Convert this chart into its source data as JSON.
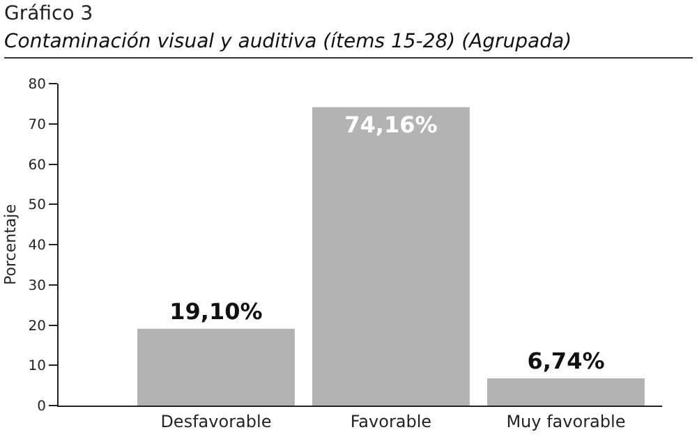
{
  "chart_data": {
    "type": "bar",
    "title": "Gráfico 3",
    "subtitle": "Contaminación visual y auditiva (ítems 15-28) (Agrupada)",
    "ylabel": "Porcentaje",
    "categories": [
      "Desfavorable",
      "Favorable",
      "Muy favorable"
    ],
    "values": [
      19.1,
      74.16,
      6.74
    ],
    "value_labels": [
      "19,10%",
      "74,16%",
      "6,74%"
    ],
    "color": "#b3b3b3",
    "ylim": [
      0,
      80
    ],
    "yticks": [
      0,
      10,
      20,
      30,
      40,
      50,
      60,
      70,
      80
    ],
    "grid": false
  }
}
